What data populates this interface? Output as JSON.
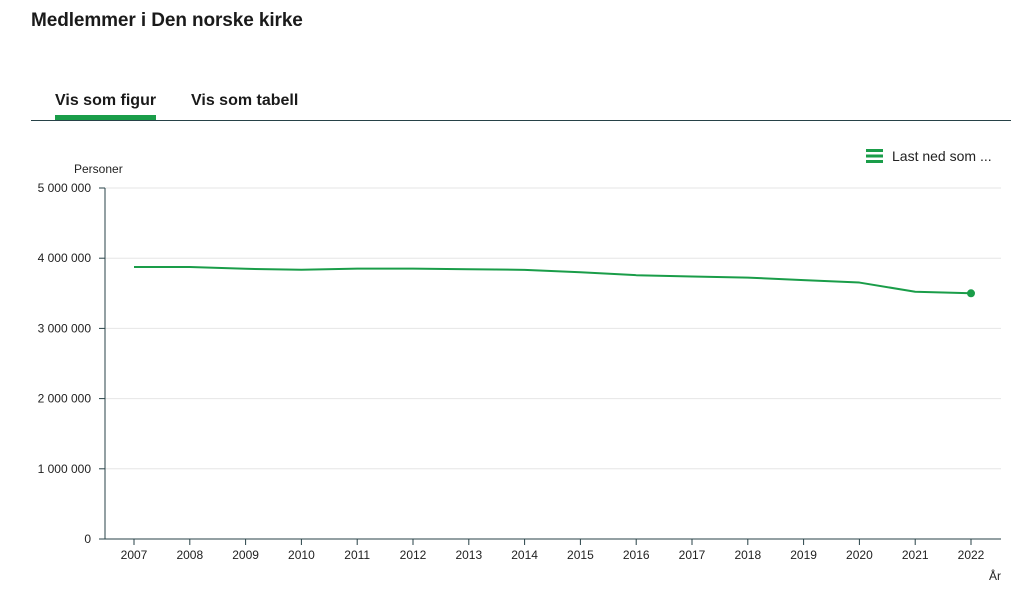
{
  "title": "Medlemmer i Den norske kirke",
  "tabs": [
    {
      "label": "Vis som figur",
      "active": true
    },
    {
      "label": "Vis som tabell",
      "active": false
    }
  ],
  "download": {
    "label": "Last ned som ...",
    "icon": "menu-icon"
  },
  "colors": {
    "accent": "#1a9d49",
    "line": "#1a9d49",
    "grid": "#e6e6e6",
    "axis": "#274247"
  },
  "chart_data": {
    "type": "line",
    "title": "Medlemmer i Den norske kirke",
    "ylabel": "Personer",
    "xlabel": "År",
    "ylim": [
      0,
      5000000
    ],
    "yticks": [
      0,
      1000000,
      2000000,
      3000000,
      4000000,
      5000000
    ],
    "ytick_labels": [
      "0",
      "1 000 000",
      "2 000 000",
      "3 000 000",
      "4 000 000",
      "5 000 000"
    ],
    "grid": true,
    "categories": [
      "2007",
      "2008",
      "2009",
      "2010",
      "2011",
      "2012",
      "2013",
      "2014",
      "2015",
      "2016",
      "2017",
      "2018",
      "2019",
      "2020",
      "2021",
      "2022"
    ],
    "series": [
      {
        "values": [
          3874000,
          3874000,
          3849000,
          3836000,
          3851000,
          3852000,
          3843000,
          3834000,
          3799000,
          3758000,
          3740000,
          3724000,
          3687000,
          3653000,
          3522000,
          3500000
        ]
      }
    ]
  }
}
